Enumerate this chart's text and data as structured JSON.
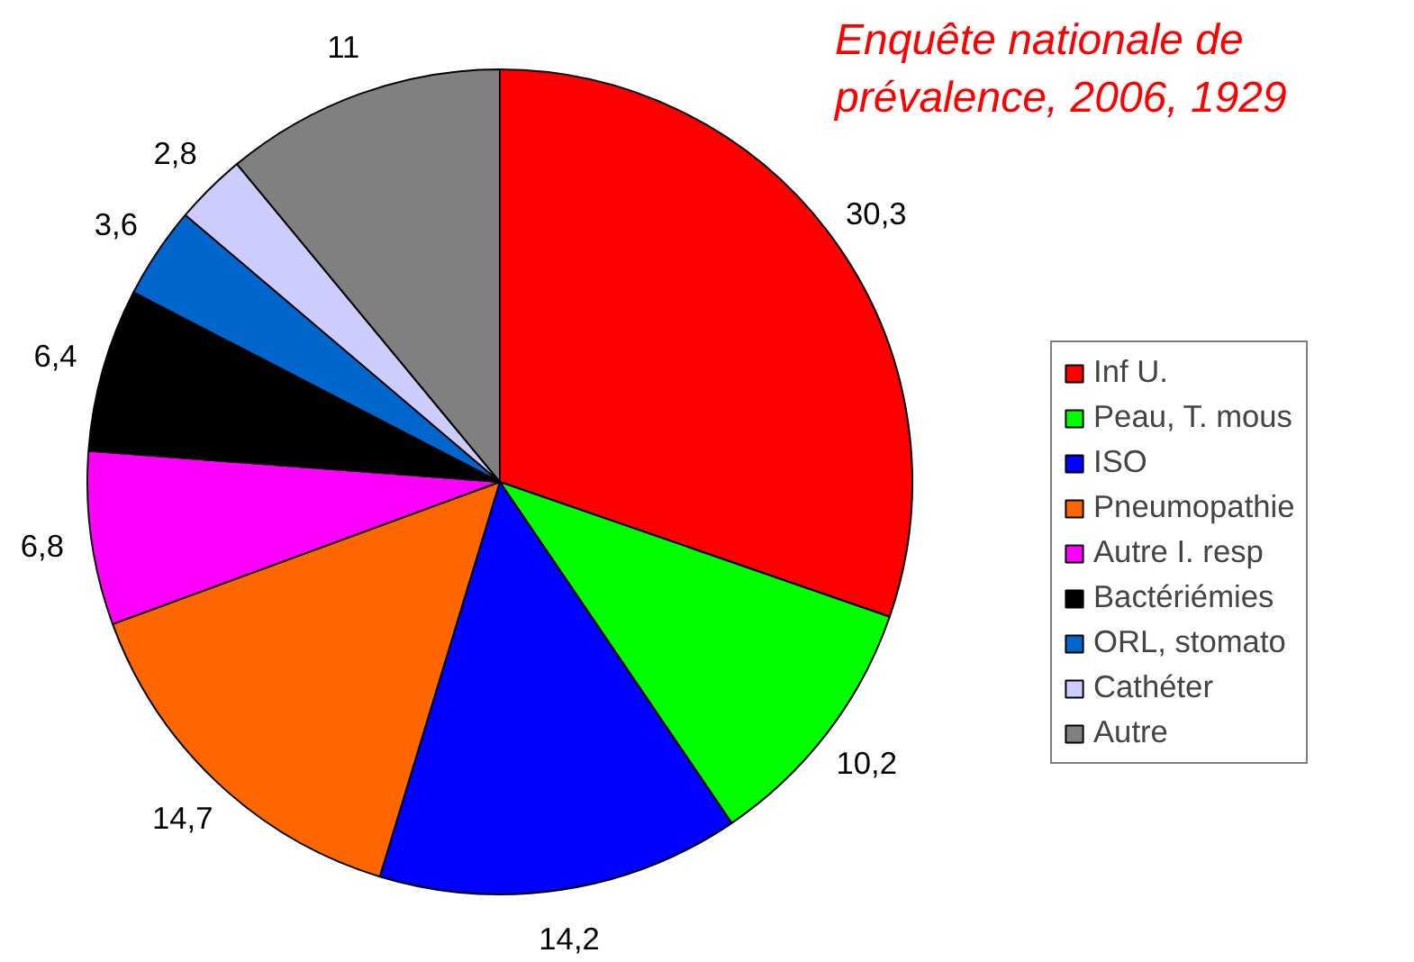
{
  "chart_data": {
    "type": "pie",
    "title": "Enquête nationale de prévalence, 2006, 1929",
    "categories": [
      "Inf U.",
      "Peau, T. mous",
      "ISO",
      "Pneumopathie",
      "Autre I. resp",
      "Bactériémies",
      "ORL, stomato",
      "Cathéter",
      "Autre"
    ],
    "values": [
      30.3,
      10.2,
      14.2,
      14.7,
      6.8,
      6.4,
      3.6,
      2.8,
      11
    ],
    "value_labels": [
      "30,3",
      "10,2",
      "14,2",
      "14,7",
      "6,8",
      "6,4",
      "3,6",
      "2,8",
      "11"
    ],
    "colors": [
      "#ff0000",
      "#00ff00",
      "#0000ff",
      "#ff6600",
      "#ff00ff",
      "#000000",
      "#0066cc",
      "#ccccff",
      "#808080"
    ],
    "legend": "right"
  }
}
